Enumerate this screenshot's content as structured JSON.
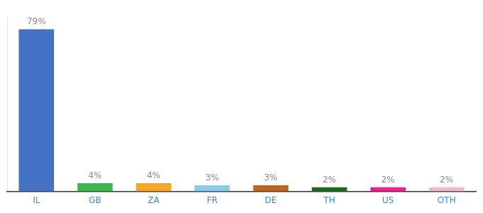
{
  "chart_data": {
    "type": "bar",
    "categories": [
      "IL",
      "GB",
      "ZA",
      "FR",
      "DE",
      "TH",
      "US",
      "OTH"
    ],
    "values": [
      79,
      4,
      4,
      3,
      3,
      2,
      2,
      2
    ],
    "value_labels": [
      "79%",
      "4%",
      "4%",
      "3%",
      "3%",
      "2%",
      "2%",
      "2%"
    ],
    "colors": [
      "#4472c4",
      "#3cb84a",
      "#f5a623",
      "#87ceeb",
      "#c0651a",
      "#1a6b1a",
      "#ff1a8c",
      "#f4b8c8"
    ],
    "ylim": [
      0,
      85
    ],
    "grid": false,
    "data_labels": true,
    "tick_labels": "x"
  }
}
